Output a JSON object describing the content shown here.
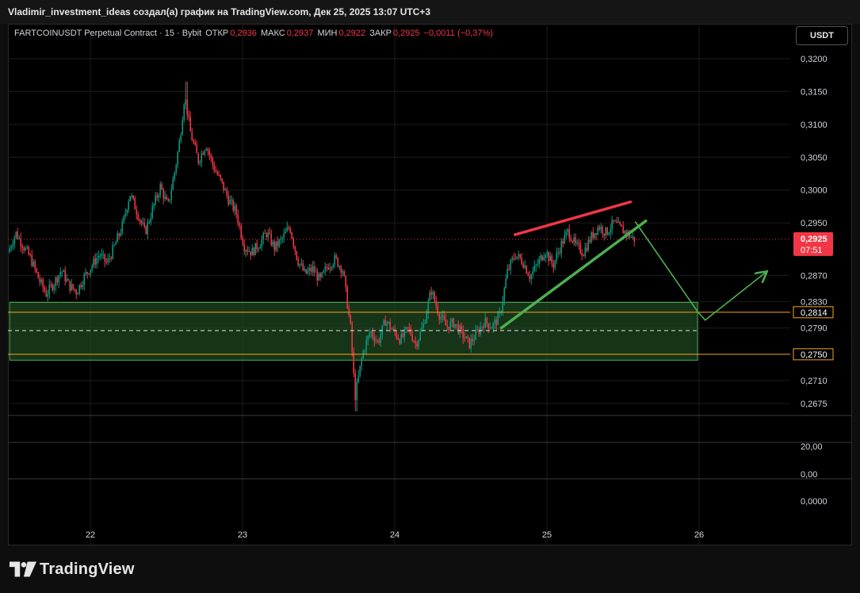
{
  "header": {
    "title": "Vladimir_investment_ideas создал(а) график на TradingView.com, Дек 25, 2025 13:07 UTC+3"
  },
  "legend": {
    "symbol": "FARTCOINUSDT Perpetual Contract · 15 · Bybit",
    "open_label": "ОТКР",
    "open_value": "0,2936",
    "high_label": "МАКС",
    "high_value": "0,2937",
    "low_label": "МИН",
    "low_value": "0,2922",
    "close_label": "ЗАКР",
    "close_value": "0,2925",
    "change": "−0,0011 (−0,37%)"
  },
  "currency_button": "USDT",
  "brand": "TradingView",
  "colors": {
    "up": "#089981",
    "down": "#f23645",
    "zone_fill": "#1e4620",
    "zone_border": "#4caf50",
    "level_line": "#f5a623",
    "resistance": "#f23645",
    "support": "#4caf50",
    "projection": "#4caf50"
  },
  "chart_data": {
    "type": "candlestick",
    "x_axis": {
      "tick_labels": [
        "22",
        "23",
        "24",
        "25",
        "26"
      ],
      "day_range": [
        21.47,
        26.44
      ]
    },
    "price_axis": {
      "tick_labels": [
        "0,3200",
        "0,3150",
        "0,3100",
        "0,3050",
        "0,3000",
        "0,2950",
        "0,2870",
        "0,2830",
        "0,2790",
        "0,2710",
        "0,2675"
      ],
      "ylim": [
        0.2655,
        0.3222
      ]
    },
    "indicator_axis": {
      "tick_labels": [
        "20,00",
        "0,00"
      ]
    },
    "indicator2_axis": {
      "tick_labels": [
        "0,0000"
      ]
    },
    "price_path": [
      [
        21.47,
        0.2905
      ],
      [
        21.52,
        0.2935
      ],
      [
        21.57,
        0.2915
      ],
      [
        21.62,
        0.2895
      ],
      [
        21.67,
        0.2865
      ],
      [
        21.72,
        0.2842
      ],
      [
        21.77,
        0.2858
      ],
      [
        21.82,
        0.2878
      ],
      [
        21.87,
        0.2855
      ],
      [
        21.92,
        0.2845
      ],
      [
        21.97,
        0.2868
      ],
      [
        22.02,
        0.2885
      ],
      [
        22.07,
        0.2902
      ],
      [
        22.12,
        0.2888
      ],
      [
        22.17,
        0.2915
      ],
      [
        22.22,
        0.2945
      ],
      [
        22.27,
        0.2995
      ],
      [
        22.32,
        0.2965
      ],
      [
        22.37,
        0.2935
      ],
      [
        22.42,
        0.2972
      ],
      [
        22.47,
        0.3005
      ],
      [
        22.52,
        0.2975
      ],
      [
        22.57,
        0.3035
      ],
      [
        22.6,
        0.308
      ],
      [
        22.63,
        0.3145
      ],
      [
        22.67,
        0.3085
      ],
      [
        22.72,
        0.3045
      ],
      [
        22.77,
        0.307
      ],
      [
        22.82,
        0.3035
      ],
      [
        22.87,
        0.3012
      ],
      [
        22.92,
        0.2985
      ],
      [
        22.97,
        0.2965
      ],
      [
        23.02,
        0.2915
      ],
      [
        23.07,
        0.2905
      ],
      [
        23.12,
        0.2918
      ],
      [
        23.17,
        0.2935
      ],
      [
        23.22,
        0.2912
      ],
      [
        23.27,
        0.2925
      ],
      [
        23.32,
        0.2945
      ],
      [
        23.37,
        0.2895
      ],
      [
        23.42,
        0.2872
      ],
      [
        23.47,
        0.288
      ],
      [
        23.52,
        0.2862
      ],
      [
        23.57,
        0.2885
      ],
      [
        23.62,
        0.2895
      ],
      [
        23.67,
        0.2878
      ],
      [
        23.72,
        0.279
      ],
      [
        23.75,
        0.2685
      ],
      [
        23.8,
        0.2752
      ],
      [
        23.85,
        0.2785
      ],
      [
        23.9,
        0.2768
      ],
      [
        23.95,
        0.2802
      ],
      [
        24.0,
        0.2785
      ],
      [
        24.05,
        0.2772
      ],
      [
        24.1,
        0.279
      ],
      [
        24.15,
        0.2765
      ],
      [
        24.2,
        0.2795
      ],
      [
        24.25,
        0.2848
      ],
      [
        24.3,
        0.2812
      ],
      [
        24.35,
        0.2792
      ],
      [
        24.4,
        0.2798
      ],
      [
        24.45,
        0.2782
      ],
      [
        24.5,
        0.2765
      ],
      [
        24.55,
        0.2782
      ],
      [
        24.6,
        0.28
      ],
      [
        24.65,
        0.2792
      ],
      [
        24.7,
        0.2808
      ],
      [
        24.75,
        0.2875
      ],
      [
        24.8,
        0.2902
      ],
      [
        24.85,
        0.2892
      ],
      [
        24.9,
        0.2868
      ],
      [
        24.95,
        0.2888
      ],
      [
        25.0,
        0.2908
      ],
      [
        25.05,
        0.2885
      ],
      [
        25.1,
        0.2915
      ],
      [
        25.15,
        0.2938
      ],
      [
        25.2,
        0.2915
      ],
      [
        25.25,
        0.2905
      ],
      [
        25.3,
        0.2928
      ],
      [
        25.35,
        0.2945
      ],
      [
        25.4,
        0.2935
      ],
      [
        25.45,
        0.295
      ],
      [
        25.5,
        0.294
      ],
      [
        25.55,
        0.2932
      ],
      [
        25.58,
        0.2925
      ]
    ],
    "high": 0.3165,
    "low": 0.2663,
    "current_price": {
      "value": 0.2925,
      "label": "0,2925",
      "countdown": "07:51"
    },
    "horizontal_levels": [
      {
        "value": 0.2814,
        "label": "0,2814"
      },
      {
        "value": 0.275,
        "label": "0,2750"
      }
    ],
    "dashed_midline": 0.2786,
    "demand_zone": {
      "top": 0.2829,
      "bottom": 0.2741,
      "start_day": 21.47,
      "end_day": 25.99
    },
    "resistance_line": [
      [
        24.79,
        0.2932
      ],
      [
        25.55,
        0.2982
      ]
    ],
    "support_line": [
      [
        24.7,
        0.279
      ],
      [
        25.65,
        0.2953
      ]
    ],
    "projection_path": [
      [
        25.58,
        0.2952
      ],
      [
        25.99,
        0.2815
      ],
      [
        26.04,
        0.2802
      ],
      [
        26.44,
        0.2875
      ]
    ]
  }
}
